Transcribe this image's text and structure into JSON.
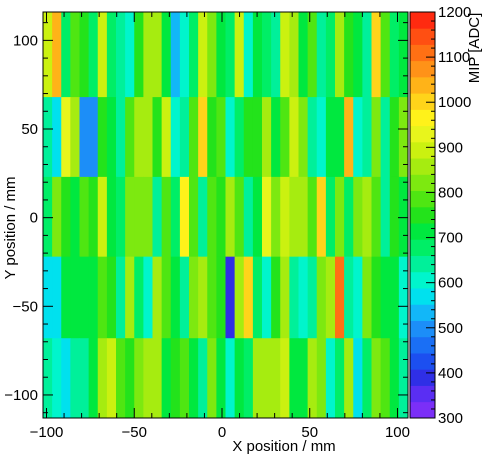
{
  "chart_data": {
    "type": "heatmap",
    "title": "",
    "xlabel": "X position / mm",
    "ylabel": "Y position / mm",
    "zlabel": "MIP [ADC]",
    "xlim": [
      -102,
      106
    ],
    "ylim": [
      -113,
      116
    ],
    "zlim": [
      300,
      1200
    ],
    "x_ticks": [
      -100,
      -50,
      0,
      50,
      100
    ],
    "y_ticks": [
      -100,
      -50,
      0,
      50,
      100
    ],
    "z_ticks": [
      300,
      400,
      500,
      600,
      700,
      800,
      900,
      1000,
      1100,
      1200
    ],
    "x_bin_width": 5.2,
    "strip_bounds_y": [
      -113,
      -68,
      -22,
      23,
      68,
      116
    ],
    "palette": [
      "#7b2ff7",
      "#5a2ef3",
      "#2f2fe6",
      "#1c4ff0",
      "#1a6ff5",
      "#1c8ef8",
      "#12b7f8",
      "#00e1ee",
      "#00f5cc",
      "#00f09a",
      "#00ee66",
      "#00e83f",
      "#23e31b",
      "#4fe612",
      "#7de910",
      "#a6ec10",
      "#cbf110",
      "#e8f51c",
      "#fff21a",
      "#ffd41a",
      "#ffb318",
      "#ff9218",
      "#ff7014",
      "#ff4f12",
      "#ff2a10"
    ],
    "rows": [
      {
        "y_min": 68,
        "y_max": 116,
        "values": [
          900,
          1050,
          660,
          780,
          760,
          680,
          900,
          660,
          650,
          620,
          760,
          840,
          850,
          720,
          520,
          620,
          680,
          880,
          820,
          700,
          690,
          900,
          600,
          710,
          660,
          630,
          900,
          850,
          710,
          790,
          640,
          670,
          840,
          760,
          700,
          650,
          1000,
          780,
          680,
          700
        ]
      },
      {
        "y_min": 23,
        "y_max": 68,
        "values": [
          640,
          570,
          920,
          840,
          510,
          480,
          760,
          700,
          640,
          800,
          870,
          840,
          760,
          880,
          620,
          640,
          780,
          1000,
          740,
          780,
          600,
          690,
          760,
          740,
          860,
          700,
          780,
          880,
          830,
          650,
          620,
          710,
          700,
          1050,
          620,
          640,
          820,
          650,
          760,
          820
        ]
      },
      {
        "y_min": -22,
        "y_max": 23,
        "values": [
          680,
          820,
          740,
          720,
          780,
          760,
          880,
          700,
          680,
          820,
          820,
          820,
          650,
          780,
          680,
          960,
          800,
          640,
          800,
          740,
          870,
          800,
          650,
          710,
          940,
          830,
          880,
          870,
          860,
          800,
          1000,
          660,
          820,
          680,
          820,
          840,
          790,
          640,
          760,
          700
        ]
      },
      {
        "y_min": -68,
        "y_max": -22,
        "values": [
          580,
          560,
          700,
          700,
          730,
          720,
          780,
          760,
          640,
          850,
          660,
          620,
          850,
          780,
          700,
          650,
          820,
          860,
          780,
          760,
          400,
          860,
          1000,
          690,
          620,
          760,
          860,
          630,
          620,
          630,
          820,
          860,
          1100,
          650,
          600,
          820,
          760,
          700,
          700,
          620
        ]
      },
      {
        "y_min": -113,
        "y_max": -68,
        "values": [
          640,
          600,
          580,
          640,
          640,
          700,
          850,
          880,
          800,
          760,
          830,
          840,
          840,
          700,
          760,
          780,
          700,
          650,
          830,
          720,
          620,
          720,
          660,
          860,
          860,
          870,
          900,
          720,
          720,
          840,
          820,
          620,
          680,
          850,
          580,
          680,
          820,
          780,
          700,
          640
        ]
      }
    ]
  }
}
